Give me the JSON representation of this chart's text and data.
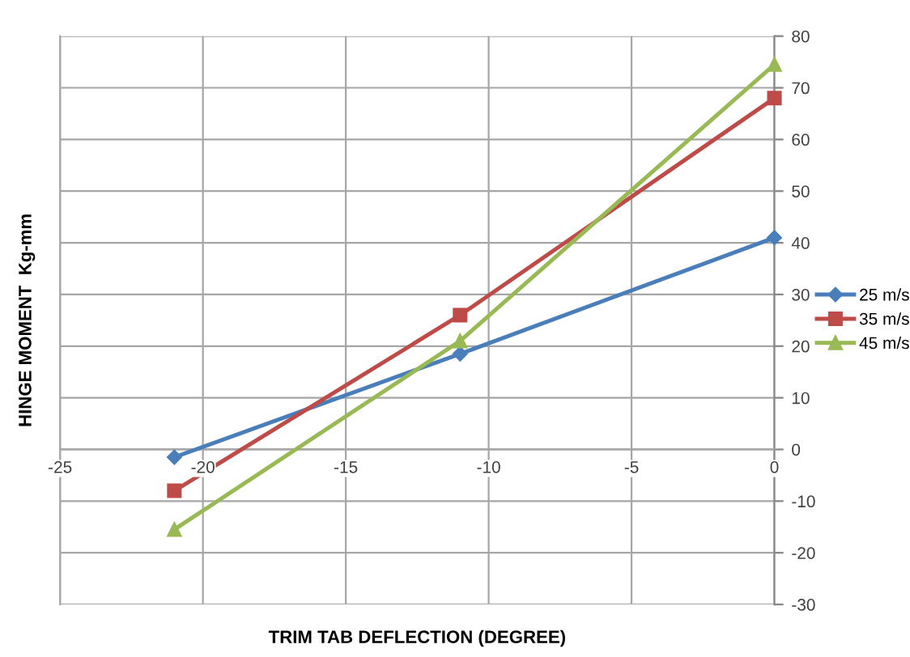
{
  "chart_data": {
    "type": "line",
    "xlabel": "TRIM TAB DEFLECTION (DEGREE)",
    "ylabel": "HINGE MOMENT  Kg-mm",
    "x": [
      -21,
      -11,
      0
    ],
    "series": [
      {
        "name": "25 m/s",
        "color": "#4a7ebb",
        "marker": "diamond",
        "values": [
          -1.5,
          18.5,
          41
        ]
      },
      {
        "name": "35 m/s",
        "color": "#be4b48",
        "marker": "square",
        "values": [
          -8,
          26,
          68
        ]
      },
      {
        "name": "45 m/s",
        "color": "#98b954",
        "marker": "triangle",
        "values": [
          -15.5,
          21,
          74.5
        ]
      }
    ],
    "xlim": [
      -25,
      0
    ],
    "xticks": [
      -25,
      -20,
      -15,
      -10,
      -5,
      0
    ],
    "ylim": [
      -30,
      80
    ],
    "yticks": [
      -30,
      -20,
      -10,
      0,
      10,
      20,
      30,
      40,
      50,
      60,
      70,
      80
    ],
    "grid": true,
    "legend": "right",
    "line_style": "solid"
  }
}
